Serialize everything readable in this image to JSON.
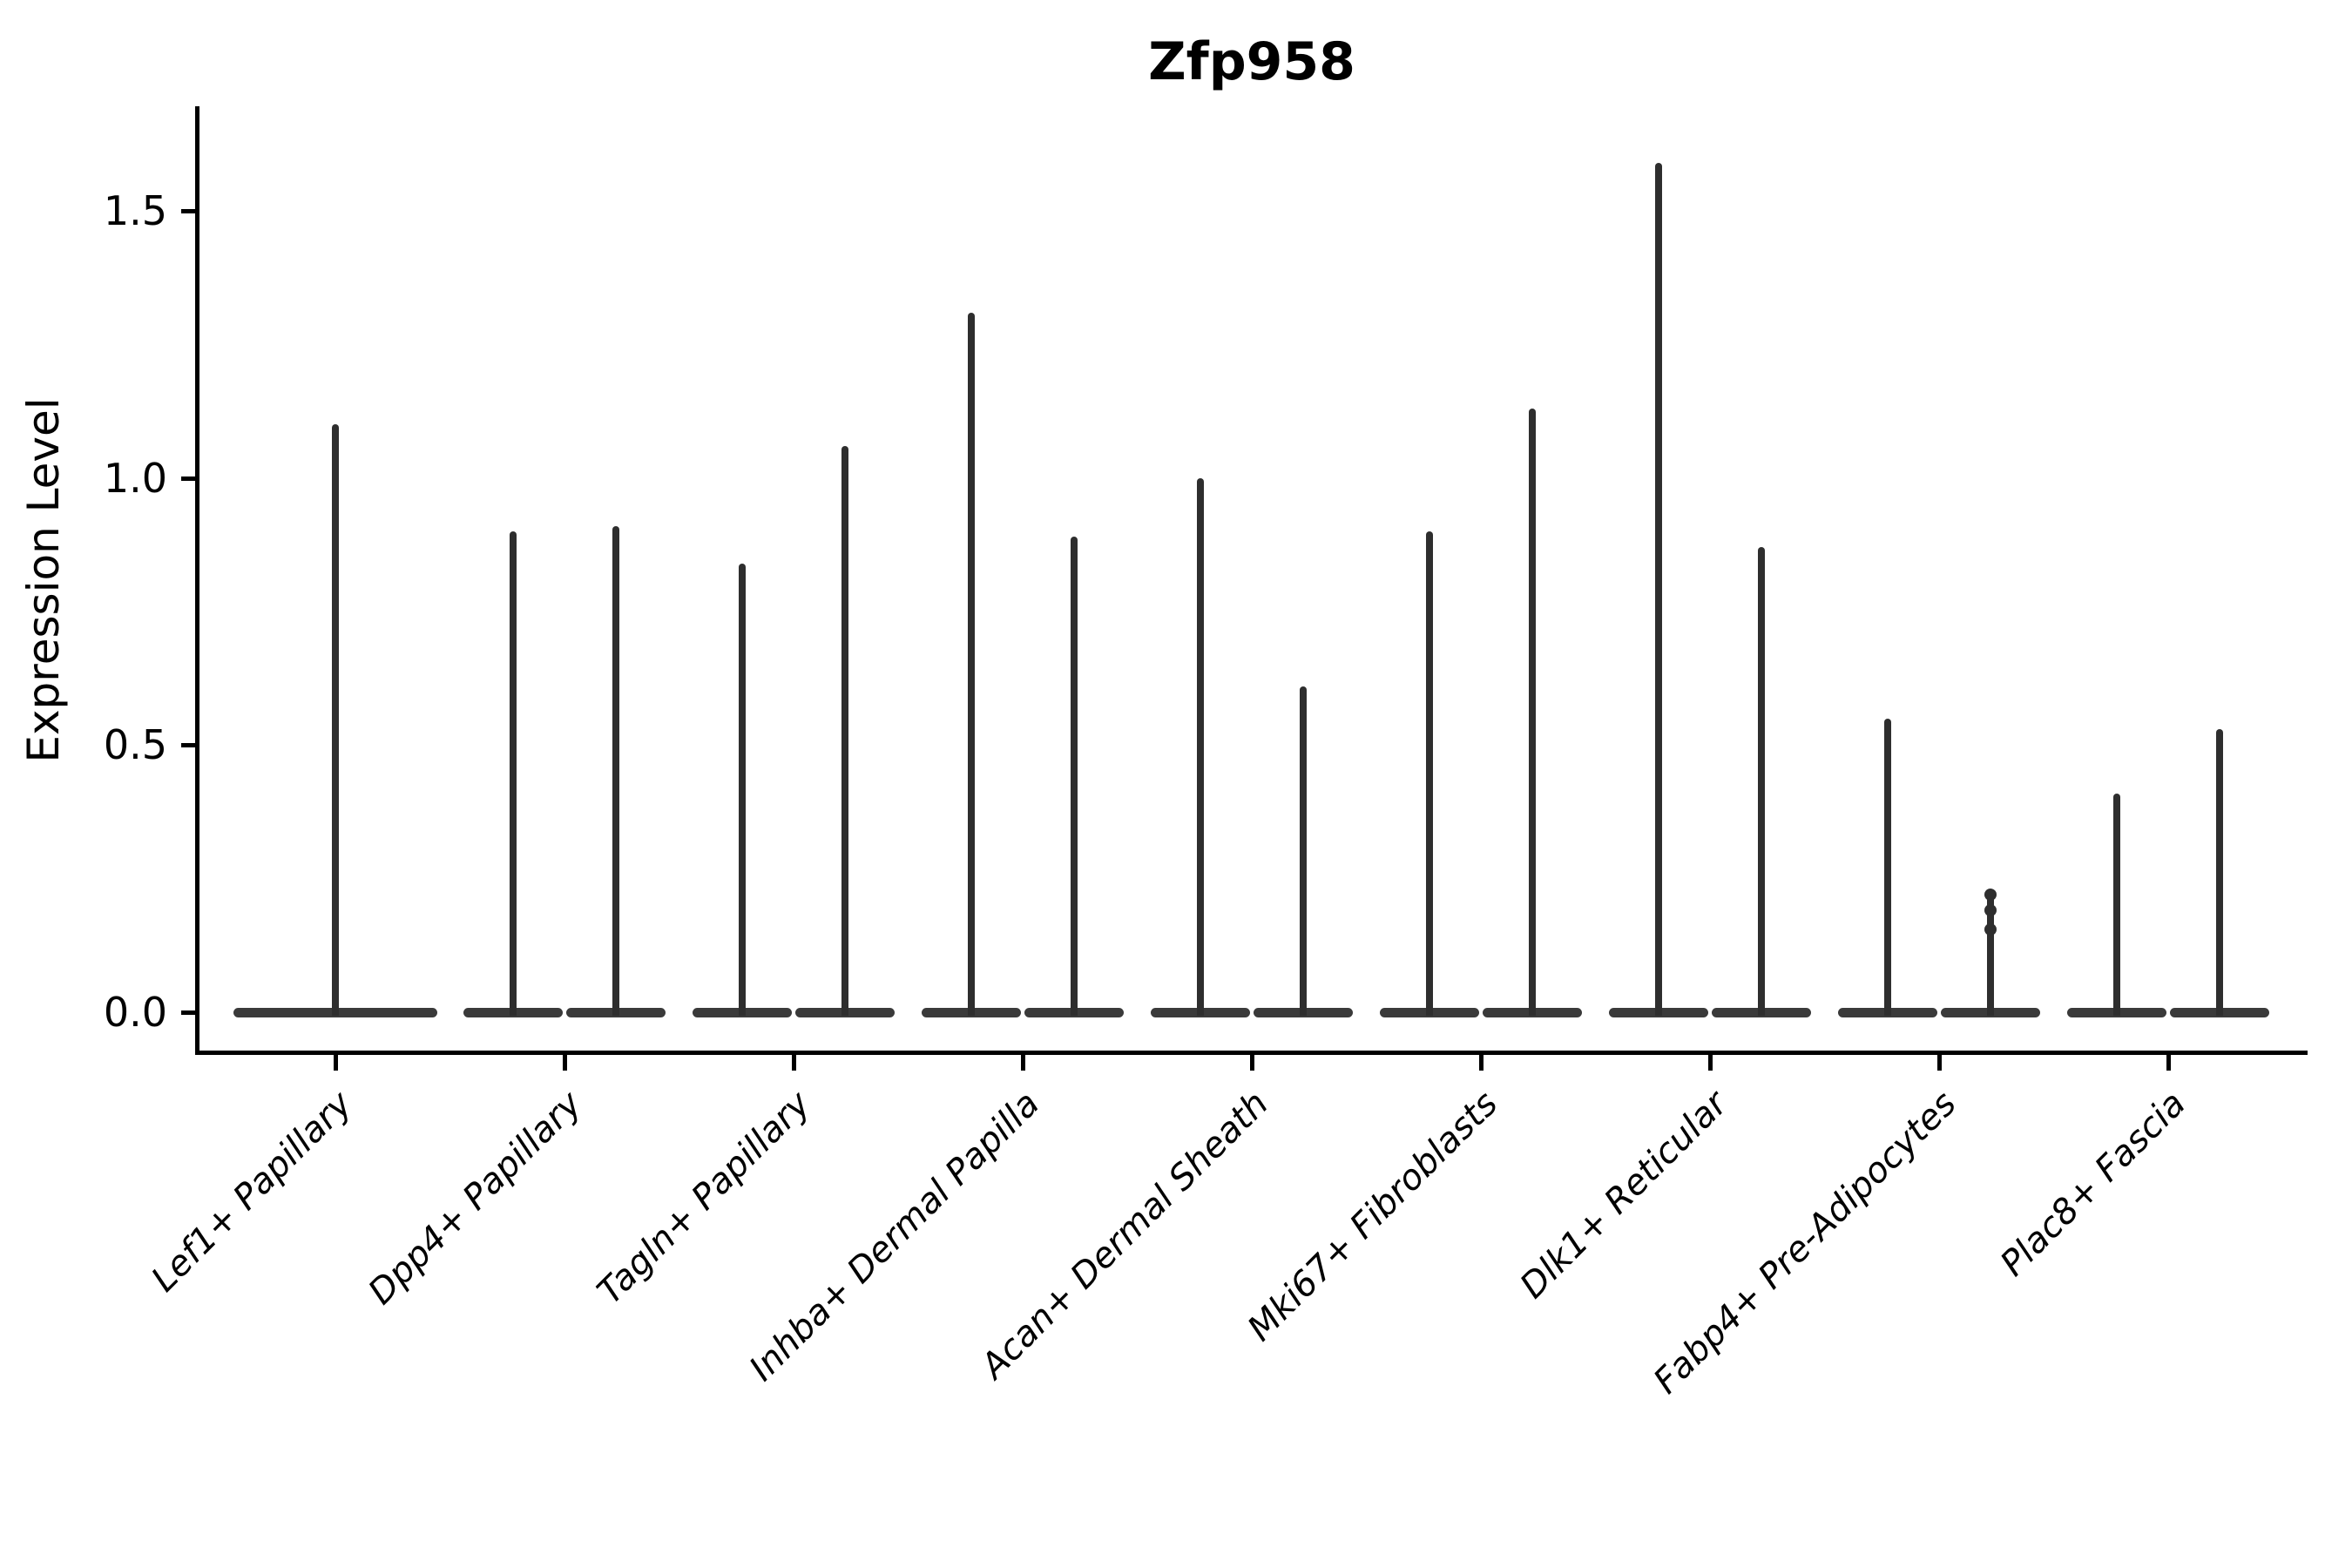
{
  "chart_data": {
    "type": "violin",
    "title": "Zfp958",
    "xlabel": "",
    "ylabel": "Expression Level",
    "ylim": [
      -0.08,
      1.7
    ],
    "grid": false,
    "legend": "none",
    "yticks": [
      {
        "value": 0.0,
        "label": "0.0"
      },
      {
        "value": 0.5,
        "label": "0.5"
      },
      {
        "value": 1.0,
        "label": "1.0"
      },
      {
        "value": 1.5,
        "label": "1.5"
      }
    ],
    "note": "Seurat-style violin plot; violins are collapsed to a flat base at 0 with a thin density spike up to the maximum expression value; two grouped violins per cell type except Lef1+ Papillary which has one centered violin",
    "categories": [
      {
        "label": "Lef1+ Papillary",
        "violins": [
          {
            "max": 1.1
          }
        ]
      },
      {
        "label": "Dpp4+ Papillary",
        "violins": [
          {
            "max": 0.9
          },
          {
            "max": 0.91
          }
        ]
      },
      {
        "label": "Tagln+ Papillary",
        "violins": [
          {
            "max": 0.84
          },
          {
            "max": 1.06
          }
        ]
      },
      {
        "label": "Inhba+ Dermal Papilla",
        "violins": [
          {
            "max": 1.31
          },
          {
            "max": 0.89
          }
        ]
      },
      {
        "label": "Acan+ Dermal Sheath",
        "violins": [
          {
            "max": 1.0
          },
          {
            "max": 0.61
          }
        ]
      },
      {
        "label": "Mki67+ Fibroblasts",
        "violins": [
          {
            "max": 0.9
          },
          {
            "max": 1.13
          }
        ]
      },
      {
        "label": "Dlk1+ Reticular",
        "violins": [
          {
            "max": 1.59
          },
          {
            "max": 0.87
          }
        ]
      },
      {
        "label": "Fabp4+ Pre-Adipocytes",
        "violins": [
          {
            "max": 0.55
          },
          {
            "max": 0.22,
            "dots": [
              0.22,
              0.19,
              0.155
            ]
          }
        ]
      },
      {
        "label": "Plac8+ Fascia",
        "violins": [
          {
            "max": 0.41
          },
          {
            "max": 0.53
          }
        ]
      }
    ],
    "colors": {
      "spike": "#2e2e2e",
      "violin_base": "#3a3a3a",
      "axis": "#000000",
      "text": "#000000"
    }
  }
}
